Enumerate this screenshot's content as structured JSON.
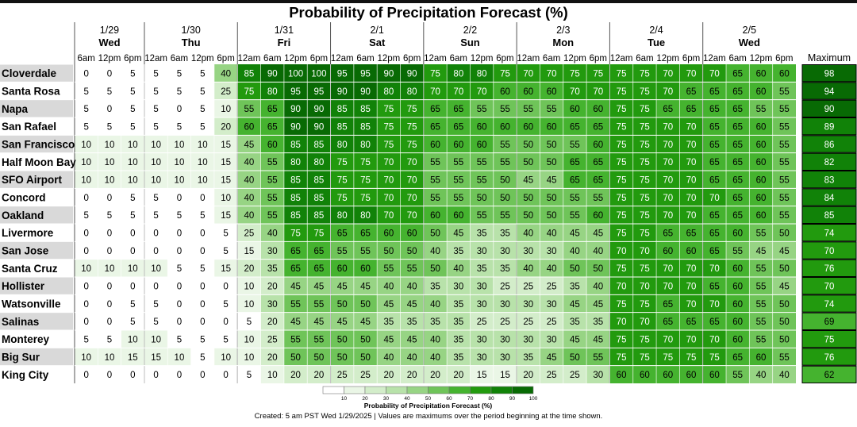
{
  "chart_data": {
    "type": "heatmap",
    "title": "Probability of Precipitation Forecast (%)",
    "legend_title": "Probability of Precipitation Forecast (%)",
    "legend_ticks": [
      "10",
      "20",
      "30",
      "40",
      "50",
      "60",
      "70",
      "80",
      "90",
      "100"
    ],
    "legend_colors": [
      "#ffffff",
      "#eaf6e6",
      "#d3edca",
      "#b8e2aa",
      "#97d484",
      "#6fc459",
      "#45b32f",
      "#229a0e",
      "#118208",
      "#086a04"
    ],
    "max_header": "Maximum",
    "days": [
      {
        "date": "1/29",
        "day": "Wed"
      },
      {
        "date": "1/30",
        "day": "Thu"
      },
      {
        "date": "1/31",
        "day": "Fri"
      },
      {
        "date": "2/1",
        "day": "Sat"
      },
      {
        "date": "2/2",
        "day": "Sun"
      },
      {
        "date": "2/3",
        "day": "Mon"
      },
      {
        "date": "2/4",
        "day": "Tue"
      },
      {
        "date": "2/5",
        "day": "Wed"
      }
    ],
    "time_labels": [
      "6am",
      "12pm",
      "6pm",
      "12am",
      "6am",
      "12pm",
      "6pm",
      "12am",
      "6am",
      "12pm",
      "6pm",
      "12am",
      "6am",
      "12pm",
      "6pm",
      "12am",
      "6am",
      "12pm",
      "6pm",
      "12am",
      "6am",
      "12pm",
      "6pm",
      "12am",
      "6am",
      "12pm",
      "6pm",
      "12am",
      "6am",
      "12pm",
      "6pm"
    ],
    "rows": [
      {
        "name": "Cloverdale",
        "max": 98,
        "values": [
          0,
          0,
          5,
          5,
          5,
          5,
          40,
          85,
          90,
          100,
          100,
          95,
          95,
          90,
          90,
          75,
          80,
          80,
          75,
          70,
          70,
          75,
          75,
          75,
          75,
          70,
          70,
          70,
          65,
          60,
          60
        ]
      },
      {
        "name": "Santa Rosa",
        "max": 94,
        "values": [
          5,
          5,
          5,
          5,
          5,
          5,
          25,
          75,
          80,
          95,
          95,
          90,
          90,
          80,
          80,
          70,
          70,
          70,
          60,
          60,
          60,
          70,
          70,
          75,
          75,
          70,
          65,
          65,
          65,
          60,
          55
        ]
      },
      {
        "name": "Napa",
        "max": 90,
        "values": [
          5,
          0,
          5,
          5,
          0,
          5,
          10,
          55,
          65,
          90,
          90,
          85,
          85,
          75,
          75,
          65,
          65,
          55,
          55,
          55,
          55,
          60,
          60,
          75,
          75,
          65,
          65,
          65,
          65,
          55,
          55
        ]
      },
      {
        "name": "San Rafael",
        "max": 89,
        "values": [
          5,
          5,
          5,
          5,
          5,
          5,
          20,
          60,
          65,
          90,
          90,
          85,
          85,
          75,
          75,
          65,
          65,
          60,
          60,
          60,
          60,
          65,
          65,
          75,
          75,
          70,
          70,
          65,
          65,
          60,
          55
        ]
      },
      {
        "name": "San Francisco",
        "max": 86,
        "values": [
          10,
          10,
          10,
          10,
          10,
          10,
          15,
          45,
          60,
          85,
          85,
          80,
          80,
          75,
          75,
          60,
          60,
          60,
          55,
          50,
          50,
          55,
          60,
          75,
          75,
          70,
          70,
          65,
          65,
          60,
          55
        ]
      },
      {
        "name": "Half Moon Bay",
        "max": 82,
        "values": [
          10,
          10,
          10,
          10,
          10,
          10,
          15,
          40,
          55,
          80,
          80,
          75,
          75,
          70,
          70,
          55,
          55,
          55,
          55,
          50,
          50,
          65,
          65,
          75,
          75,
          70,
          70,
          65,
          65,
          60,
          55
        ]
      },
      {
        "name": "SFO Airport",
        "max": 83,
        "values": [
          10,
          10,
          10,
          10,
          10,
          10,
          15,
          40,
          55,
          85,
          85,
          75,
          75,
          70,
          70,
          55,
          55,
          55,
          50,
          45,
          45,
          65,
          65,
          75,
          75,
          70,
          70,
          65,
          65,
          60,
          55
        ]
      },
      {
        "name": "Concord",
        "max": 84,
        "values": [
          0,
          0,
          5,
          5,
          0,
          0,
          10,
          40,
          55,
          85,
          85,
          75,
          75,
          70,
          70,
          55,
          55,
          50,
          50,
          50,
          50,
          55,
          55,
          75,
          75,
          70,
          70,
          70,
          65,
          60,
          55
        ]
      },
      {
        "name": "Oakland",
        "max": 85,
        "values": [
          5,
          5,
          5,
          5,
          5,
          5,
          15,
          40,
          55,
          85,
          85,
          80,
          80,
          70,
          70,
          60,
          60,
          55,
          55,
          50,
          50,
          55,
          60,
          75,
          75,
          70,
          70,
          65,
          65,
          60,
          55
        ]
      },
      {
        "name": "Livermore",
        "max": 74,
        "values": [
          0,
          0,
          0,
          0,
          0,
          0,
          5,
          25,
          40,
          75,
          75,
          65,
          65,
          60,
          60,
          50,
          45,
          35,
          35,
          40,
          40,
          45,
          45,
          75,
          75,
          65,
          65,
          65,
          60,
          55,
          50
        ]
      },
      {
        "name": "San Jose",
        "max": 70,
        "values": [
          0,
          0,
          0,
          0,
          0,
          0,
          5,
          15,
          30,
          65,
          65,
          55,
          55,
          50,
          50,
          40,
          35,
          30,
          30,
          30,
          30,
          40,
          40,
          70,
          70,
          60,
          60,
          65,
          55,
          45,
          45
        ]
      },
      {
        "name": "Santa Cruz",
        "max": 76,
        "values": [
          10,
          10,
          10,
          10,
          5,
          5,
          15,
          20,
          35,
          65,
          65,
          60,
          60,
          55,
          55,
          50,
          40,
          35,
          35,
          40,
          40,
          50,
          50,
          75,
          75,
          70,
          70,
          70,
          60,
          55,
          50
        ]
      },
      {
        "name": "Hollister",
        "max": 70,
        "values": [
          0,
          0,
          0,
          0,
          0,
          0,
          0,
          10,
          20,
          45,
          45,
          45,
          45,
          40,
          40,
          35,
          30,
          30,
          25,
          25,
          25,
          35,
          40,
          70,
          70,
          70,
          70,
          65,
          60,
          55,
          45
        ]
      },
      {
        "name": "Watsonville",
        "max": 74,
        "values": [
          0,
          0,
          5,
          5,
          0,
          0,
          5,
          10,
          30,
          55,
          55,
          50,
          50,
          45,
          45,
          40,
          35,
          30,
          30,
          30,
          30,
          45,
          45,
          75,
          75,
          65,
          70,
          70,
          60,
          55,
          50
        ]
      },
      {
        "name": "Salinas",
        "max": 69,
        "values": [
          0,
          0,
          5,
          5,
          0,
          0,
          0,
          5,
          20,
          45,
          45,
          45,
          45,
          35,
          35,
          35,
          35,
          25,
          25,
          25,
          25,
          35,
          35,
          70,
          70,
          65,
          65,
          65,
          60,
          55,
          50
        ]
      },
      {
        "name": "Monterey",
        "max": 75,
        "values": [
          5,
          5,
          10,
          10,
          5,
          5,
          5,
          10,
          25,
          55,
          55,
          50,
          50,
          45,
          45,
          40,
          35,
          30,
          30,
          30,
          30,
          45,
          45,
          75,
          75,
          70,
          70,
          70,
          60,
          55,
          50
        ]
      },
      {
        "name": "Big Sur",
        "max": 76,
        "values": [
          10,
          10,
          15,
          15,
          10,
          5,
          10,
          10,
          20,
          50,
          50,
          50,
          50,
          40,
          40,
          40,
          35,
          30,
          30,
          35,
          45,
          50,
          55,
          75,
          75,
          75,
          75,
          75,
          65,
          60,
          55
        ]
      },
      {
        "name": "King City",
        "max": 62,
        "values": [
          0,
          0,
          0,
          0,
          0,
          0,
          0,
          5,
          10,
          20,
          20,
          25,
          25,
          20,
          20,
          20,
          20,
          15,
          15,
          20,
          25,
          25,
          30,
          60,
          60,
          60,
          60,
          60,
          55,
          40,
          40
        ]
      }
    ],
    "footer": "Created: 5 am PST Wed 1/29/2025  |  Values are maximums over the period beginning at the time shown."
  }
}
